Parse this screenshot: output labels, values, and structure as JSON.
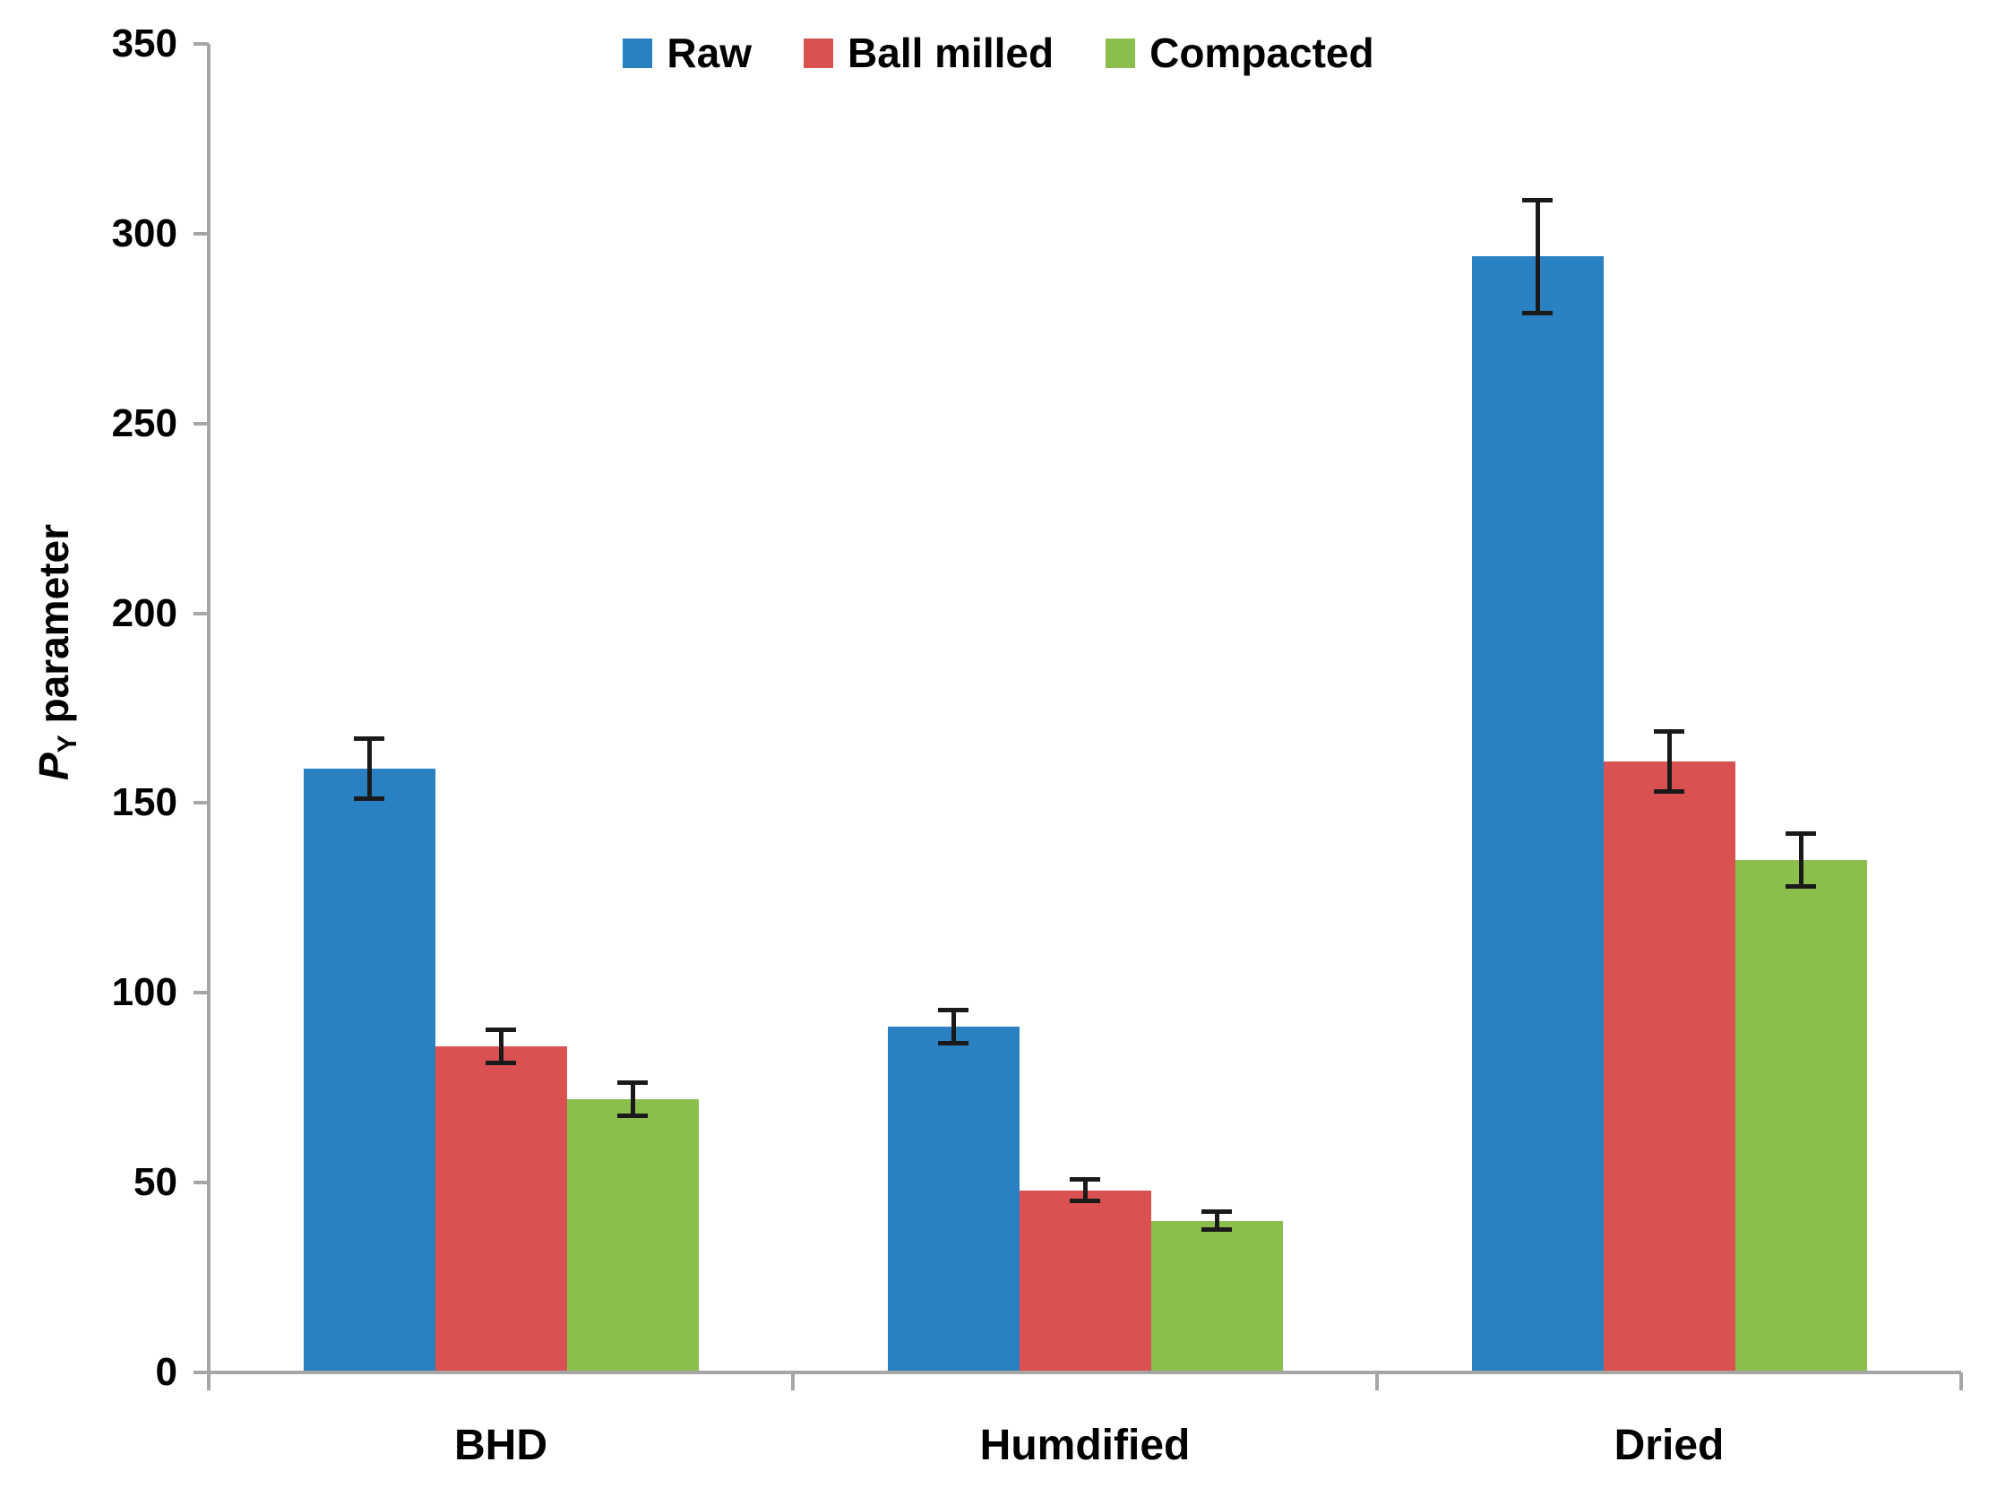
{
  "figure": {
    "background": "#ffffff",
    "axis_color": "#a6a6a6",
    "error_bar_color": "#1a1a1a",
    "text_color": "#000000"
  },
  "legend": {
    "position": "top-center",
    "items": [
      {
        "label": "Raw",
        "color": "#2a81c1"
      },
      {
        "label": "Ball milled",
        "color": "#d95251"
      },
      {
        "label": "Compacted",
        "color": "#8cbe4d"
      }
    ]
  },
  "y_axis": {
    "title_italic": "P",
    "title_subscript": "Y",
    "title_rest": " parameter",
    "min": 0,
    "max": 350,
    "tick_step": 50,
    "tick_labels": [
      "0",
      "50",
      "100",
      "150",
      "200",
      "250",
      "300",
      "350"
    ]
  },
  "x_axis": {
    "categories": [
      "BHD",
      "Humdified",
      "Dried"
    ]
  },
  "chart_data": {
    "type": "bar",
    "title": "",
    "categories": [
      "BHD",
      "Humdified",
      "Dried"
    ],
    "series": [
      {
        "name": "Raw",
        "color": "#2a81c1",
        "values": [
          159,
          91,
          294
        ],
        "errors": [
          8,
          4.5,
          15
        ]
      },
      {
        "name": "Ball milled",
        "color": "#d95251",
        "values": [
          86,
          48,
          161
        ],
        "errors": [
          4.5,
          3,
          8
        ]
      },
      {
        "name": "Compacted",
        "color": "#8cbe4d",
        "values": [
          72,
          40,
          135
        ],
        "errors": [
          4.5,
          2.5,
          7
        ]
      }
    ],
    "xlabel": "",
    "ylabel": "P_Y parameter",
    "ylim": [
      0,
      350
    ],
    "ytick_step": 50,
    "grid": false,
    "error_bars": true,
    "legend_position": "top-center"
  }
}
